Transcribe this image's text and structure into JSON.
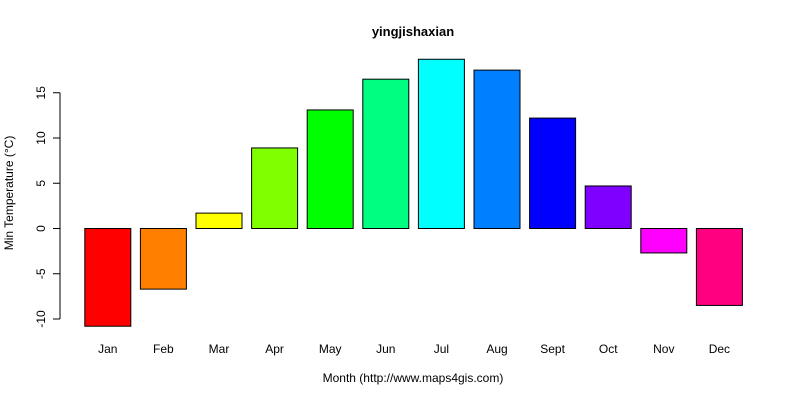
{
  "chart_data": {
    "type": "bar",
    "title": "yingjishaxian",
    "xlabel": "Month (http://www.maps4gis.com)",
    "ylabel": "Min Temperature (°C)",
    "categories": [
      "Jan",
      "Feb",
      "Mar",
      "Apr",
      "May",
      "Jun",
      "Jul",
      "Aug",
      "Sept",
      "Oct",
      "Nov",
      "Dec"
    ],
    "values": [
      -10.8,
      -6.7,
      1.7,
      8.9,
      13.1,
      16.5,
      18.7,
      17.5,
      12.2,
      4.7,
      -2.7,
      -8.5
    ],
    "colors": [
      "#FF0000",
      "#FF8000",
      "#FFFF00",
      "#80FF00",
      "#00FF00",
      "#00FF80",
      "#00FFFF",
      "#0080FF",
      "#0000FF",
      "#8000FF",
      "#FF00FF",
      "#FF0080"
    ],
    "yticks": [
      -10,
      -5,
      0,
      5,
      10,
      15
    ],
    "ylim": [
      -10.8,
      18.7
    ],
    "grid": false,
    "legend": "none"
  }
}
